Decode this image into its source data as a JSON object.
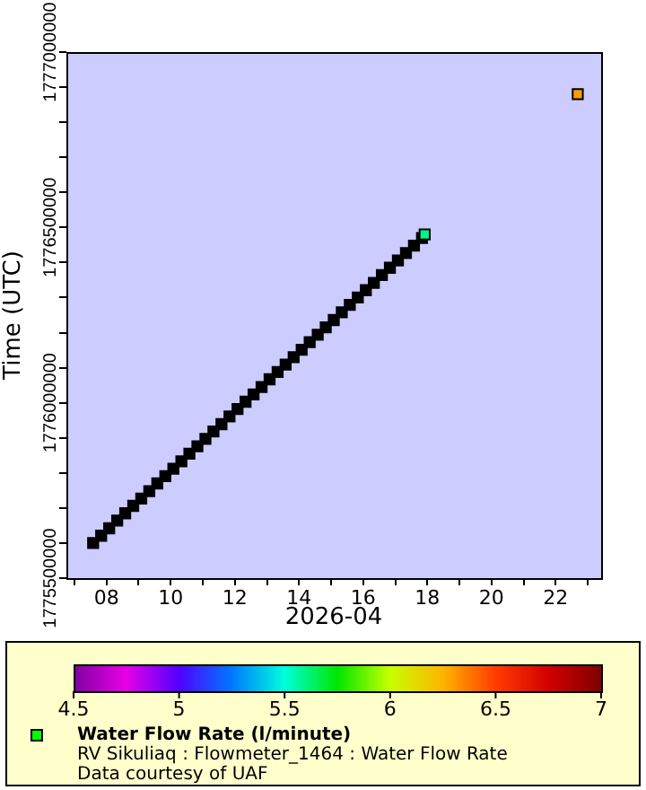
{
  "chart_data": {
    "type": "scatter",
    "ylabel": "Time (UTC)",
    "xlabel": "2026-04",
    "clabel": "Water Flow Rate (l/minute)",
    "annotations": [
      "RV Sikuliaq : Flowmeter_1464 : Water Flow Rate",
      "Data courtesy of UAF"
    ],
    "x": [
      "2026-04-07T14:00",
      "2026-04-07T20:00",
      "2026-04-08T02:00",
      "2026-04-08T08:00",
      "2026-04-08T14:00",
      "2026-04-08T20:00",
      "2026-04-09T02:00",
      "2026-04-09T08:00",
      "2026-04-09T14:00",
      "2026-04-09T20:00",
      "2026-04-10T02:00",
      "2026-04-10T08:00",
      "2026-04-10T14:00",
      "2026-04-10T20:00",
      "2026-04-11T02:00",
      "2026-04-11T08:00",
      "2026-04-11T14:00",
      "2026-04-11T20:00",
      "2026-04-12T02:00",
      "2026-04-12T08:00",
      "2026-04-12T14:00",
      "2026-04-12T20:00",
      "2026-04-13T02:00",
      "2026-04-13T08:00",
      "2026-04-13T14:00",
      "2026-04-13T20:00",
      "2026-04-14T02:00",
      "2026-04-14T08:00",
      "2026-04-14T14:00",
      "2026-04-14T20:00",
      "2026-04-15T02:00",
      "2026-04-15T08:00",
      "2026-04-15T14:00",
      "2026-04-15T20:00",
      "2026-04-16T02:00",
      "2026-04-16T08:00",
      "2026-04-16T14:00",
      "2026-04-16T20:00",
      "2026-04-17T02:00",
      "2026-04-17T08:00",
      "2026-04-17T14:00",
      "2026-04-17T20:00",
      "2026-04-17T22:00",
      "2026-04-22T16:30"
    ],
    "values": [
      1775600000,
      1775621000,
      1775642000,
      1775664000,
      1775685000,
      1775706000,
      1775727000,
      1775748000,
      1775770000,
      1775791000,
      1775812000,
      1775833000,
      1775855000,
      1775876000,
      1775897000,
      1775918000,
      1775939000,
      1775961000,
      1775982000,
      1776003000,
      1776024000,
      1776045000,
      1776067000,
      1776088000,
      1776109000,
      1776130000,
      1776151000,
      1776173000,
      1776194000,
      1776215000,
      1776236000,
      1776258000,
      1776279000,
      1776300000,
      1776321000,
      1776342000,
      1776364000,
      1776385000,
      1776406000,
      1776427000,
      1776448000,
      1776470000,
      1776480000,
      1776880000
    ],
    "cvalues": [
      null,
      null,
      null,
      null,
      null,
      null,
      null,
      null,
      null,
      null,
      null,
      null,
      null,
      null,
      null,
      null,
      null,
      null,
      null,
      null,
      null,
      null,
      null,
      null,
      null,
      null,
      null,
      null,
      null,
      null,
      null,
      null,
      null,
      null,
      null,
      null,
      null,
      null,
      null,
      null,
      null,
      null,
      5.6,
      6.3
    ],
    "marker": "square",
    "xlim": [
      "2026-04-06T18:00",
      "2026-04-23T10:00"
    ],
    "xticks": [
      {
        "value": "2026-04-07",
        "label": null
      },
      {
        "value": "2026-04-08",
        "label": "08"
      },
      {
        "value": "2026-04-09",
        "label": null
      },
      {
        "value": "2026-04-10",
        "label": "10"
      },
      {
        "value": "2026-04-11",
        "label": null
      },
      {
        "value": "2026-04-12",
        "label": "12"
      },
      {
        "value": "2026-04-13",
        "label": null
      },
      {
        "value": "2026-04-14",
        "label": "14"
      },
      {
        "value": "2026-04-15",
        "label": null
      },
      {
        "value": "2026-04-16",
        "label": "16"
      },
      {
        "value": "2026-04-17",
        "label": null
      },
      {
        "value": "2026-04-18",
        "label": "18"
      },
      {
        "value": "2026-04-19",
        "label": null
      },
      {
        "value": "2026-04-20",
        "label": "20"
      },
      {
        "value": "2026-04-21",
        "label": null
      },
      {
        "value": "2026-04-22",
        "label": "22"
      },
      {
        "value": "2026-04-23",
        "label": null
      }
    ],
    "ylim": [
      1775500000,
      1777000000
    ],
    "yticks": [
      1775500000,
      {
        "value": 1775600000,
        "label": null
      },
      {
        "value": 1775700000,
        "label": null
      },
      {
        "value": 1775800000,
        "label": null
      },
      {
        "value": 1775900000,
        "label": null
      },
      1776000000,
      {
        "value": 1776100000,
        "label": null
      },
      {
        "value": 1776200000,
        "label": null
      },
      {
        "value": 1776300000,
        "label": null
      },
      {
        "value": 1776400000,
        "label": null
      },
      1776500000,
      {
        "value": 1776600000,
        "label": null
      },
      {
        "value": 1776700000,
        "label": null
      },
      {
        "value": 1776800000,
        "label": null
      },
      {
        "value": 1776900000,
        "label": null
      },
      1777000000
    ],
    "clim": [
      4.5,
      7
    ],
    "cticks": [
      4.5,
      5,
      5.5,
      6,
      6.5,
      7
    ],
    "grid": false,
    "legend": false
  }
}
